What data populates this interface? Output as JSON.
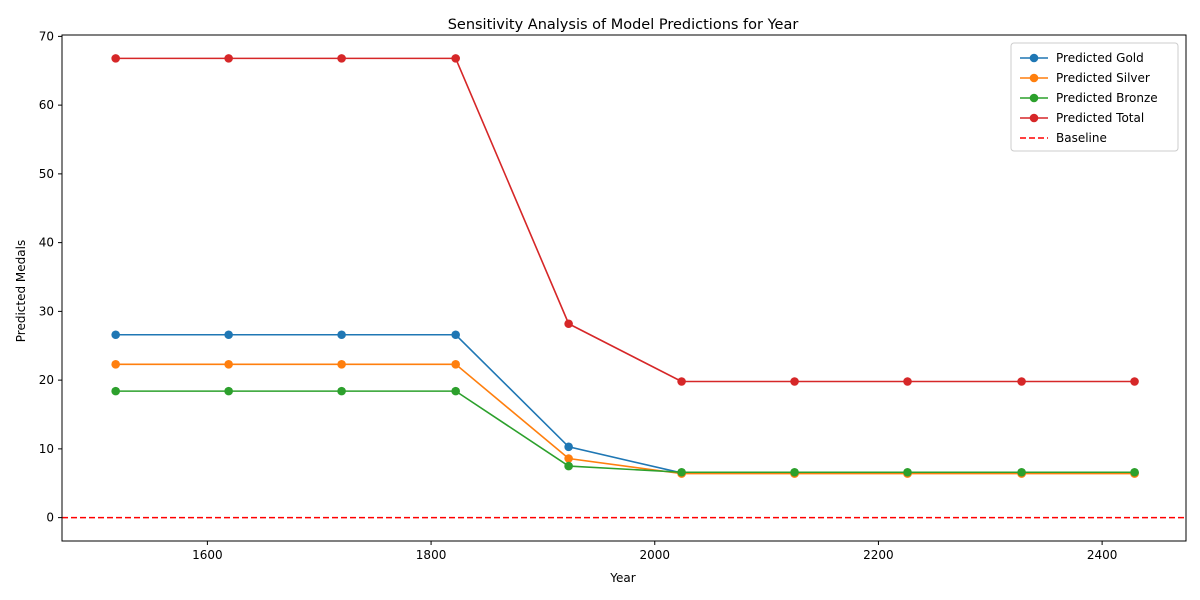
{
  "chart_data": {
    "type": "line",
    "title": "Sensitivity Analysis of Model Predictions for Year",
    "xlabel": "Year",
    "ylabel": "Predicted Medals",
    "xlim": [
      1470,
      2475
    ],
    "ylim": [
      -3.4,
      70.2
    ],
    "xticks": [
      1600,
      1800,
      2000,
      2200,
      2400
    ],
    "yticks": [
      0,
      10,
      20,
      30,
      40,
      50,
      60,
      70
    ],
    "grid": false,
    "legend_position": "top-right",
    "x": [
      1518,
      1619,
      1720,
      1822,
      1923,
      2024,
      2125,
      2226,
      2328,
      2429
    ],
    "series": [
      {
        "name": "Predicted Gold",
        "color": "#1f77b4",
        "values": [
          26.6,
          26.6,
          26.6,
          26.6,
          10.3,
          6.5,
          6.5,
          6.5,
          6.5,
          6.5
        ]
      },
      {
        "name": "Predicted Silver",
        "color": "#ff7f0e",
        "values": [
          22.3,
          22.3,
          22.3,
          22.3,
          8.6,
          6.4,
          6.4,
          6.4,
          6.4,
          6.4
        ]
      },
      {
        "name": "Predicted Bronze",
        "color": "#2ca02c",
        "values": [
          18.4,
          18.4,
          18.4,
          18.4,
          7.5,
          6.6,
          6.6,
          6.6,
          6.6,
          6.6
        ]
      },
      {
        "name": "Predicted Total",
        "color": "#d62728",
        "values": [
          66.8,
          66.8,
          66.8,
          66.8,
          28.2,
          19.8,
          19.8,
          19.8,
          19.8,
          19.8
        ]
      }
    ],
    "baseline": {
      "name": "Baseline",
      "value": 0,
      "color": "#ff0000",
      "style": "dashed"
    }
  }
}
